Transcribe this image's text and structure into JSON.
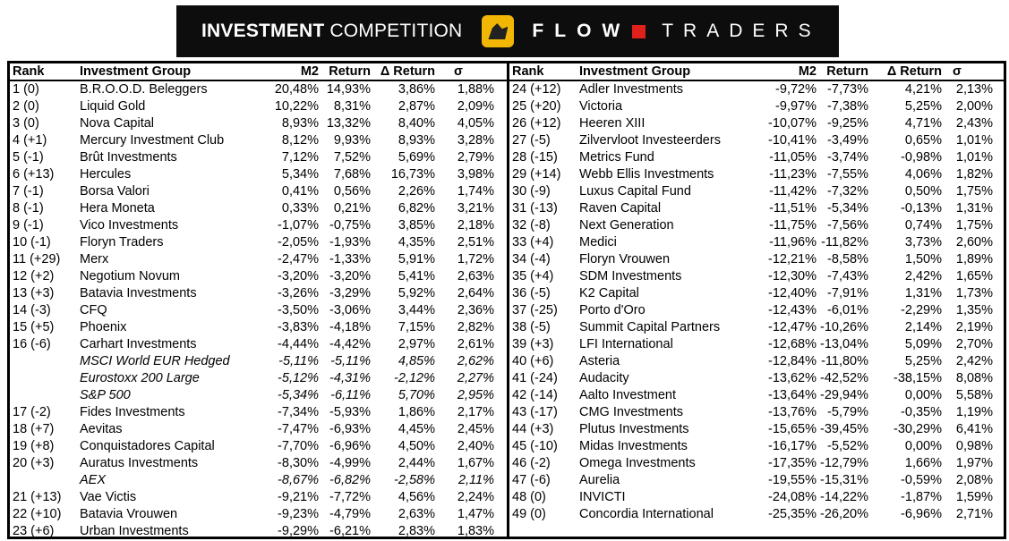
{
  "banner": {
    "title_bold": "INVESTMENT",
    "title_rest": " COMPETITION",
    "brand_a": "FLOW",
    "brand_b": "TRADERS",
    "brand_color": "#e0201b",
    "logo_color": "#f2b705"
  },
  "headers": {
    "rank": "Rank",
    "group": "Investment Group",
    "m2": "M2",
    "ret": "Return",
    "dret": "Δ Return",
    "sigma": "σ"
  },
  "left_rows": [
    [
      "1 (0)",
      "B.R.O.O.D. Beleggers",
      "20,48%",
      "14,93%",
      "3,86%",
      "1,88%"
    ],
    [
      "2 (0)",
      "Liquid Gold",
      "10,22%",
      "8,31%",
      "2,87%",
      "2,09%"
    ],
    [
      "3 (0)",
      "Nova Capital",
      "8,93%",
      "13,32%",
      "8,40%",
      "4,05%"
    ],
    [
      "4 (+1)",
      "Mercury Investment Club",
      "8,12%",
      "9,93%",
      "8,93%",
      "3,28%"
    ],
    [
      "5 (-1)",
      "Brût Investments",
      "7,12%",
      "7,52%",
      "5,69%",
      "2,79%"
    ],
    [
      "6 (+13)",
      "Hercules",
      "5,34%",
      "7,68%",
      "16,73%",
      "3,98%"
    ],
    [
      "7 (-1)",
      "Borsa Valori",
      "0,41%",
      "0,56%",
      "2,26%",
      "1,74%"
    ],
    [
      "8 (-1)",
      "Hera Moneta",
      "0,33%",
      "0,21%",
      "6,82%",
      "3,21%"
    ],
    [
      "9 (-1)",
      "Vico Investments",
      "-1,07%",
      "-0,75%",
      "3,85%",
      "2,18%"
    ],
    [
      "10 (-1)",
      "Floryn Traders",
      "-2,05%",
      "-1,93%",
      "4,35%",
      "2,51%"
    ],
    [
      "11 (+29)",
      "Merx",
      "-2,47%",
      "-1,33%",
      "5,91%",
      "1,72%"
    ],
    [
      "12 (+2)",
      "Negotium Novum",
      "-3,20%",
      "-3,20%",
      "5,41%",
      "2,63%"
    ],
    [
      "13 (+3)",
      "Batavia Investments",
      "-3,26%",
      "-3,29%",
      "5,92%",
      "2,64%"
    ],
    [
      "14 (-3)",
      "CFQ",
      "-3,50%",
      "-3,06%",
      "3,44%",
      "2,36%"
    ],
    [
      "15 (+5)",
      "Phoenix",
      "-3,83%",
      "-4,18%",
      "7,15%",
      "2,82%"
    ],
    [
      "16 (-6)",
      "Carhart Investments",
      "-4,44%",
      "-4,42%",
      "2,97%",
      "2,61%"
    ],
    [
      "",
      "MSCI World EUR Hedged",
      "-5,11%",
      "-5,11%",
      "4,85%",
      "2,62%"
    ],
    [
      "",
      "Eurostoxx 200 Large",
      "-5,12%",
      "-4,31%",
      "-2,12%",
      "2,27%"
    ],
    [
      "",
      "S&P 500",
      "-5,34%",
      "-6,11%",
      "5,70%",
      "2,95%"
    ],
    [
      "17 (-2)",
      "Fides Investments",
      "-7,34%",
      "-5,93%",
      "1,86%",
      "2,17%"
    ],
    [
      "18 (+7)",
      "Aevitas",
      "-7,47%",
      "-6,93%",
      "4,45%",
      "2,45%"
    ],
    [
      "19 (+8)",
      "Conquistadores Capital",
      "-7,70%",
      "-6,96%",
      "4,50%",
      "2,40%"
    ],
    [
      "20 (+3)",
      "Auratus Investments",
      "-8,30%",
      "-4,99%",
      "2,44%",
      "1,67%"
    ],
    [
      "",
      "AEX",
      "-8,67%",
      "-6,82%",
      "-2,58%",
      "2,11%"
    ],
    [
      "21 (+13)",
      "Vae Victis",
      "-9,21%",
      "-7,72%",
      "4,56%",
      "2,24%"
    ],
    [
      "22 (+10)",
      "Batavia Vrouwen",
      "-9,23%",
      "-4,79%",
      "2,63%",
      "1,47%"
    ],
    [
      "23 (+6)",
      "Urban Investments",
      "-9,29%",
      "-6,21%",
      "2,83%",
      "1,83%"
    ]
  ],
  "right_rows": [
    [
      "24 (+12)",
      "Adler Investments",
      "-9,72%",
      "-7,73%",
      "4,21%",
      "2,13%"
    ],
    [
      "25 (+20)",
      "Victoria",
      "-9,97%",
      "-7,38%",
      "5,25%",
      "2,00%"
    ],
    [
      "26 (+12)",
      "Heeren XIII",
      "-10,07%",
      "-9,25%",
      "4,71%",
      "2,43%"
    ],
    [
      "27 (-5)",
      "Zilvervloot Investeerders",
      "-10,41%",
      "-3,49%",
      "0,65%",
      "1,01%"
    ],
    [
      "28 (-15)",
      "Metrics Fund",
      "-11,05%",
      "-3,74%",
      "-0,98%",
      "1,01%"
    ],
    [
      "29 (+14)",
      "Webb Ellis Investments",
      "-11,23%",
      "-7,55%",
      "4,06%",
      "1,82%"
    ],
    [
      "30 (-9)",
      "Luxus Capital Fund",
      "-11,42%",
      "-7,32%",
      "0,50%",
      "1,75%"
    ],
    [
      "31 (-13)",
      "Raven Capital",
      "-11,51%",
      "-5,34%",
      "-0,13%",
      "1,31%"
    ],
    [
      "32 (-8)",
      "Next Generation",
      "-11,75%",
      "-7,56%",
      "0,74%",
      "1,75%"
    ],
    [
      "33 (+4)",
      "Medici",
      "-11,96%",
      "-11,82%",
      "3,73%",
      "2,60%"
    ],
    [
      "34 (-4)",
      "Floryn Vrouwen",
      "-12,21%",
      "-8,58%",
      "1,50%",
      "1,89%"
    ],
    [
      "35 (+4)",
      "SDM Investments",
      "-12,30%",
      "-7,43%",
      "2,42%",
      "1,65%"
    ],
    [
      "36 (-5)",
      "K2 Capital",
      "-12,40%",
      "-7,91%",
      "1,31%",
      "1,73%"
    ],
    [
      "37 (-25)",
      "Porto d'Oro",
      "-12,43%",
      "-6,01%",
      "-2,29%",
      "1,35%"
    ],
    [
      "38 (-5)",
      "Summit Capital Partners",
      "-12,47%",
      "-10,26%",
      "2,14%",
      "2,19%"
    ],
    [
      "39 (+3)",
      "LFI International",
      "-12,68%",
      "-13,04%",
      "5,09%",
      "2,70%"
    ],
    [
      "40 (+6)",
      "Asteria",
      "-12,84%",
      "-11,80%",
      "5,25%",
      "2,42%"
    ],
    [
      "41 (-24)",
      "Audacity",
      "-13,62%",
      "-42,52%",
      "-38,15%",
      "8,08%"
    ],
    [
      "42 (-14)",
      "Aalto Investment",
      "-13,64%",
      "-29,94%",
      "0,00%",
      "5,58%"
    ],
    [
      "43 (-17)",
      "CMG Investments",
      "-13,76%",
      "-5,79%",
      "-0,35%",
      "1,19%"
    ],
    [
      "44 (+3)",
      "Plutus Investments",
      "-15,65%",
      "-39,45%",
      "-30,29%",
      "6,41%"
    ],
    [
      "45 (-10)",
      "Midas Investments",
      "-16,17%",
      "-5,52%",
      "0,00%",
      "0,98%"
    ],
    [
      "46 (-2)",
      "Omega Investments",
      "-17,35%",
      "-12,79%",
      "1,66%",
      "1,97%"
    ],
    [
      "47 (-6)",
      "Aurelia",
      "-19,55%",
      "-15,31%",
      "-0,59%",
      "2,08%"
    ],
    [
      "48 (0)",
      "INVICTI",
      "-24,08%",
      "-14,22%",
      "-1,87%",
      "1,59%"
    ],
    [
      "49 (0)",
      "Concordia International",
      "-25,35%",
      "-26,20%",
      "-6,96%",
      "2,71%"
    ]
  ]
}
